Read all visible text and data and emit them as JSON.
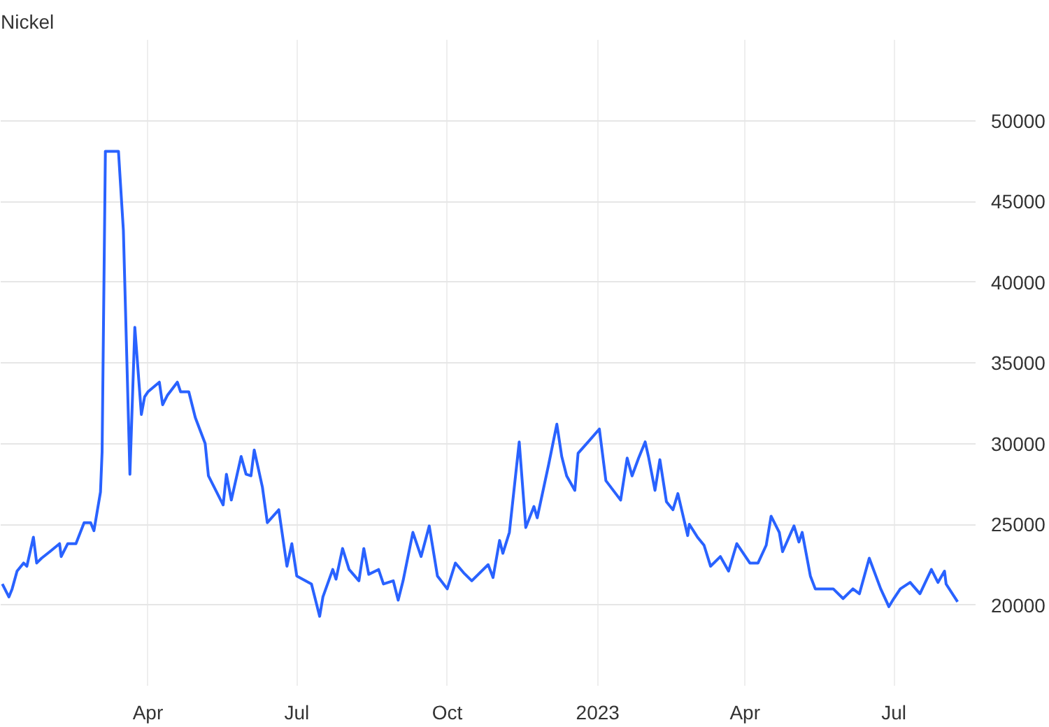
{
  "chart_data": {
    "type": "line",
    "title": "Nickel",
    "x": [
      "2022-01-02",
      "2022-01-06",
      "2022-01-08",
      "2022-01-11",
      "2022-01-15",
      "2022-01-17",
      "2022-01-21",
      "2022-01-23",
      "2022-01-26",
      "2022-01-31",
      "2022-02-06",
      "2022-02-07",
      "2022-02-11",
      "2022-02-16",
      "2022-02-21",
      "2022-02-25",
      "2022-02-27",
      "2022-03-03",
      "2022-03-04",
      "2022-03-06",
      "2022-03-14",
      "2022-03-17",
      "2022-03-21",
      "2022-03-24",
      "2022-03-28",
      "2022-03-30",
      "2022-04-01",
      "2022-04-08",
      "2022-04-10",
      "2022-04-13",
      "2022-04-19",
      "2022-04-21",
      "2022-04-26",
      "2022-04-30",
      "2022-05-06",
      "2022-05-08",
      "2022-05-17",
      "2022-05-19",
      "2022-05-22",
      "2022-05-28",
      "2022-05-31",
      "2022-06-03",
      "2022-06-05",
      "2022-06-10",
      "2022-06-13",
      "2022-06-20",
      "2022-06-25",
      "2022-06-28",
      "2022-07-01",
      "2022-07-10",
      "2022-07-15",
      "2022-07-17",
      "2022-07-23",
      "2022-07-25",
      "2022-07-29",
      "2022-08-02",
      "2022-08-08",
      "2022-08-11",
      "2022-08-14",
      "2022-08-20",
      "2022-08-23",
      "2022-08-29",
      "2022-09-01",
      "2022-09-04",
      "2022-09-10",
      "2022-09-15",
      "2022-09-20",
      "2022-09-25",
      "2022-10-01",
      "2022-10-06",
      "2022-10-11",
      "2022-10-16",
      "2022-10-26",
      "2022-10-29",
      "2022-11-02",
      "2022-11-04",
      "2022-11-08",
      "2022-11-14",
      "2022-11-18",
      "2022-11-23",
      "2022-11-25",
      "2022-12-02",
      "2022-12-07",
      "2022-12-10",
      "2022-12-13",
      "2022-12-18",
      "2022-12-20",
      "2022-12-27",
      "2023-01-02",
      "2023-01-06",
      "2023-01-15",
      "2023-01-19",
      "2023-01-22",
      "2023-01-26",
      "2023-01-30",
      "2023-02-01",
      "2023-02-05",
      "2023-02-08",
      "2023-02-12",
      "2023-02-16",
      "2023-02-19",
      "2023-02-25",
      "2023-02-26",
      "2023-03-03",
      "2023-03-07",
      "2023-03-11",
      "2023-03-17",
      "2023-03-22",
      "2023-03-27",
      "2023-04-04",
      "2023-04-09",
      "2023-04-14",
      "2023-04-17",
      "2023-04-22",
      "2023-04-24",
      "2023-05-01",
      "2023-05-04",
      "2023-05-06",
      "2023-05-11",
      "2023-05-14",
      "2023-05-25",
      "2023-05-31",
      "2023-06-06",
      "2023-06-10",
      "2023-06-16",
      "2023-06-23",
      "2023-06-28",
      "2023-07-01",
      "2023-07-05",
      "2023-07-11",
      "2023-07-17",
      "2023-07-24",
      "2023-07-28",
      "2023-08-01",
      "2023-08-02",
      "2023-08-09"
    ],
    "series": [
      {
        "color": "#2962ff",
        "values": [
          21300,
          20500,
          21000,
          22100,
          22600,
          22400,
          24200,
          22600,
          22900,
          23300,
          23800,
          23000,
          23800,
          23800,
          25100,
          25100,
          24600,
          27000,
          29500,
          48100,
          48100,
          43200,
          28100,
          37200,
          31800,
          32900,
          33200,
          33800,
          32400,
          33000,
          33800,
          33200,
          33200,
          31600,
          30000,
          28000,
          26200,
          28100,
          26500,
          29200,
          28100,
          28000,
          29600,
          27300,
          25100,
          25900,
          22400,
          23800,
          21800,
          21300,
          19300,
          20500,
          22200,
          21600,
          23500,
          22200,
          21500,
          23500,
          21900,
          22200,
          21300,
          21500,
          20300,
          21500,
          24500,
          23000,
          24900,
          21800,
          21000,
          22600,
          22000,
          21500,
          22500,
          21700,
          24000,
          23200,
          24500,
          30100,
          24800,
          26100,
          25400,
          28700,
          31200,
          29200,
          28000,
          27100,
          29400,
          30200,
          30900,
          27700,
          26500,
          29100,
          28000,
          29100,
          30100,
          29200,
          27100,
          29000,
          26400,
          25900,
          26900,
          24300,
          25000,
          24200,
          23700,
          22400,
          23000,
          22100,
          23800,
          22600,
          22600,
          23700,
          25500,
          24500,
          23300,
          24900,
          23900,
          24500,
          21800,
          21000,
          21000,
          20400,
          21000,
          20700,
          22900,
          21000,
          19900,
          20400,
          21000,
          21400,
          20700,
          22200,
          21400,
          22100,
          21300,
          20200
        ]
      }
    ],
    "xlim": [
      "2022-01-01",
      "2023-08-20"
    ],
    "xticks": [
      {
        "value": "2022-04-01",
        "label": "Apr"
      },
      {
        "value": "2022-07-01",
        "label": "Jul"
      },
      {
        "value": "2022-10-01",
        "label": "Oct"
      },
      {
        "value": "2023-01-01",
        "label": "2023"
      },
      {
        "value": "2023-04-01",
        "label": "Apr"
      },
      {
        "value": "2023-07-01",
        "label": "Jul"
      }
    ],
    "ylim": [
      15000,
      55000
    ],
    "yticks": [
      20000,
      25000,
      30000,
      35000,
      40000,
      45000,
      50000
    ],
    "grid": true,
    "marker": "none",
    "line_style": "solid"
  }
}
